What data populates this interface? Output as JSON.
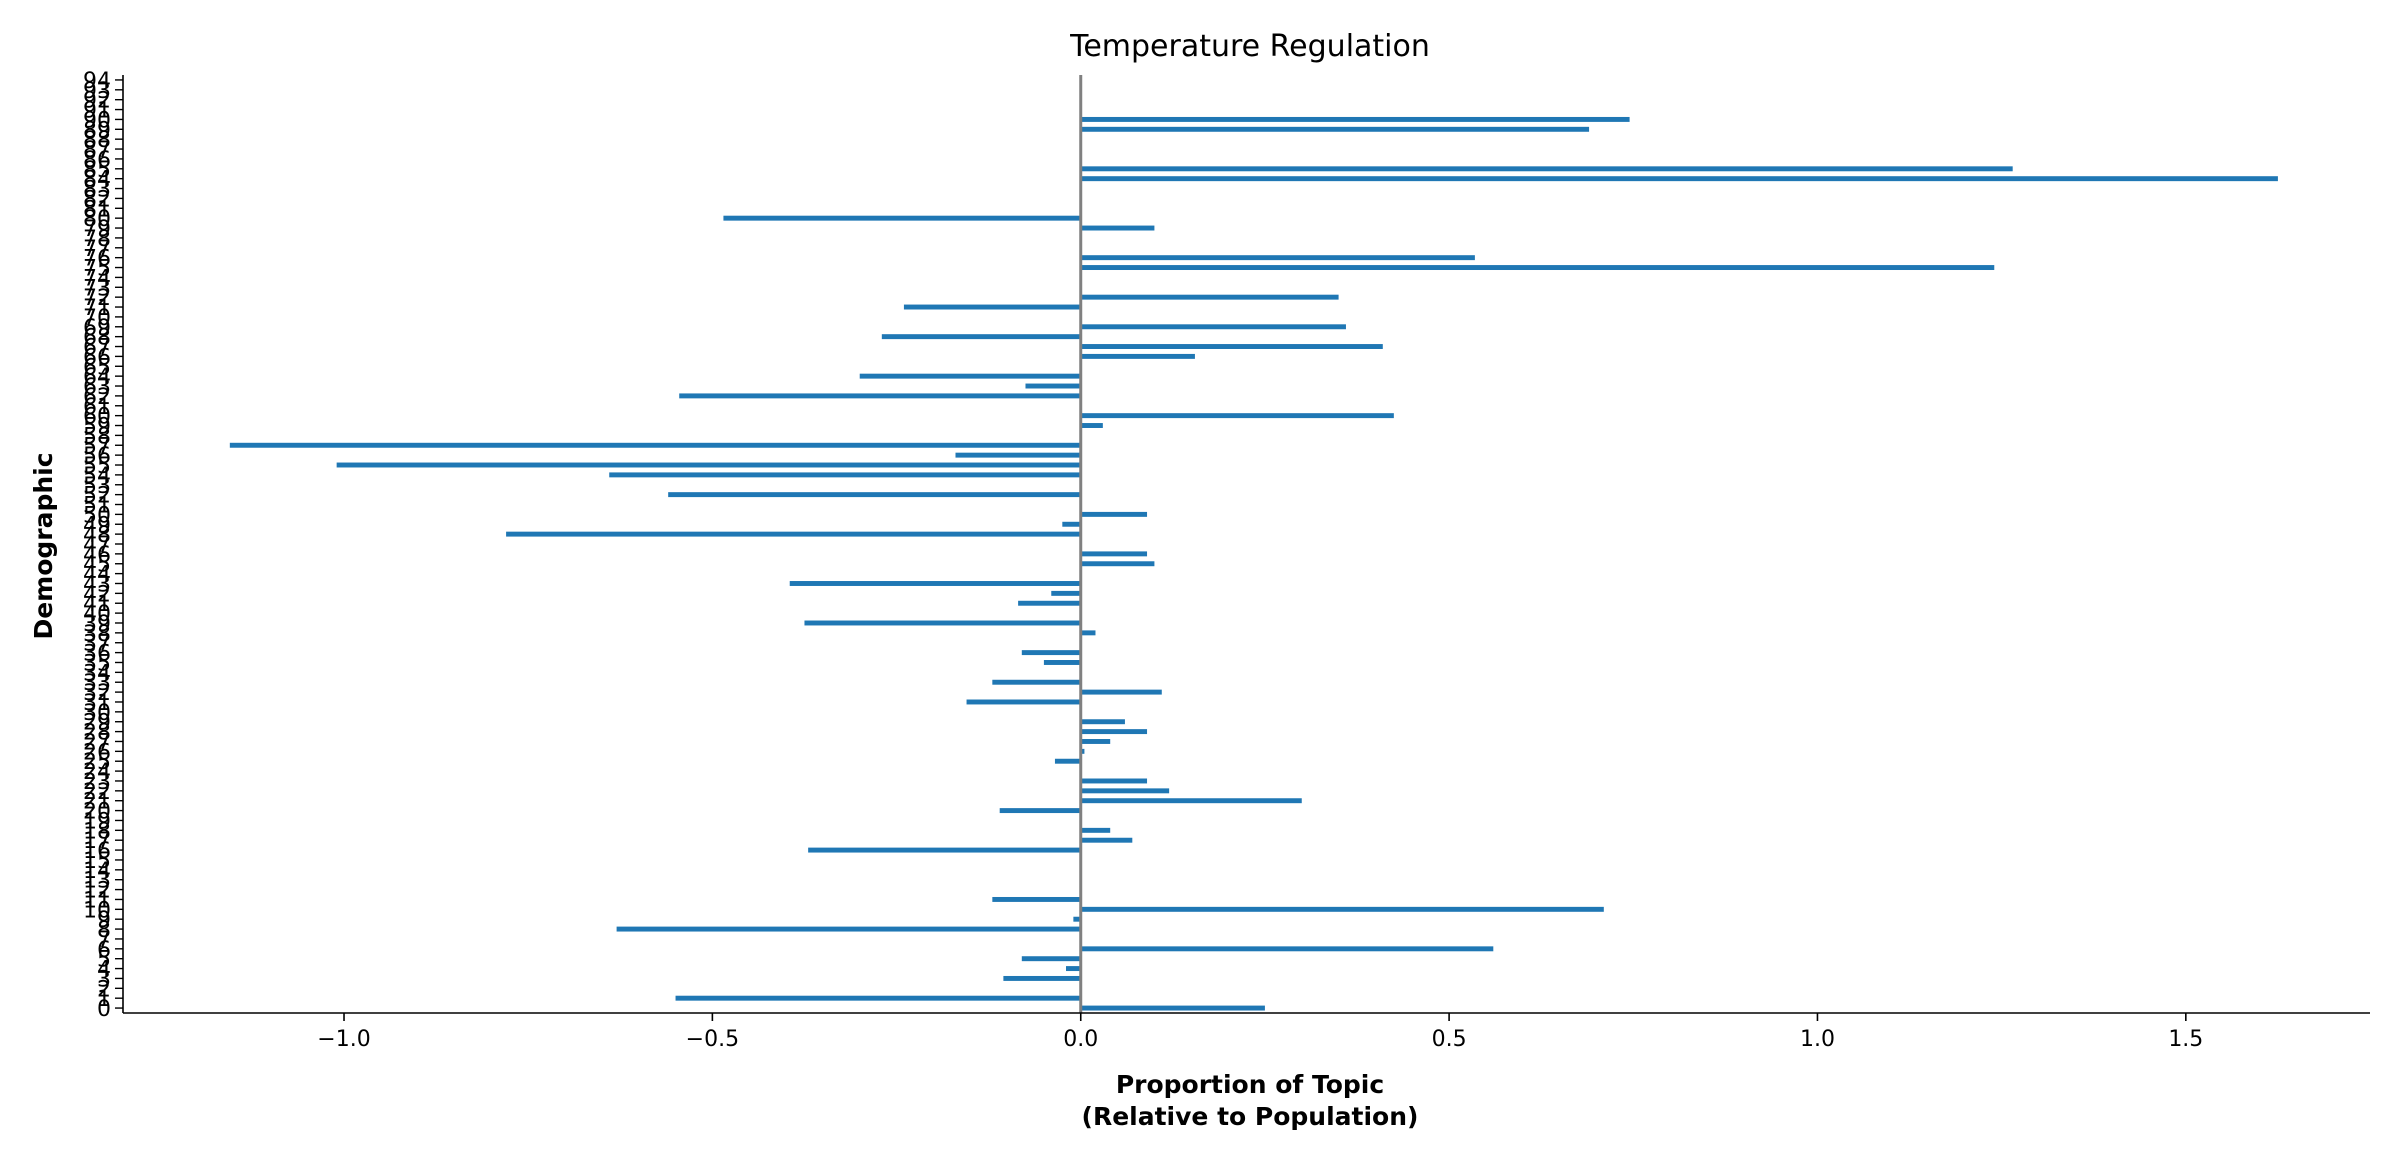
{
  "chart_data": {
    "type": "bar",
    "orientation": "horizontal",
    "title": "Temperature Regulation",
    "xlabel_lines": [
      "Proportion of Topic",
      "(Relative to Population)"
    ],
    "ylabel": "Demographic",
    "xlim": [
      -1.3,
      1.75
    ],
    "ylim": [
      -0.5,
      94.5
    ],
    "xticks": [
      -1.0,
      -0.5,
      0.0,
      0.5,
      1.0,
      1.5
    ],
    "xtick_labels": [
      "−1.0",
      "−0.5",
      "0.0",
      "0.5",
      "1.0",
      "1.5"
    ],
    "reference_line_x": 0,
    "colors": {
      "bar": "#1f77b4",
      "zero_line": "#808080",
      "axis": "#000000"
    },
    "grid": false,
    "categories": [
      0,
      1,
      2,
      3,
      4,
      5,
      6,
      7,
      8,
      9,
      10,
      11,
      12,
      13,
      14,
      15,
      16,
      17,
      18,
      19,
      20,
      21,
      22,
      23,
      24,
      25,
      26,
      27,
      28,
      29,
      30,
      31,
      32,
      33,
      34,
      35,
      36,
      37,
      38,
      39,
      40,
      41,
      42,
      43,
      44,
      45,
      46,
      47,
      48,
      49,
      50,
      51,
      52,
      53,
      54,
      55,
      56,
      57,
      58,
      59,
      60,
      61,
      62,
      63,
      64,
      65,
      66,
      67,
      68,
      69,
      70,
      71,
      72,
      73,
      74,
      75,
      76,
      77,
      78,
      79,
      80,
      81,
      82,
      83,
      84,
      85,
      86,
      87,
      88,
      89,
      90,
      91,
      92,
      93,
      94
    ],
    "values": [
      0.25,
      -0.55,
      0,
      -0.105,
      -0.02,
      -0.08,
      0.56,
      0,
      -0.63,
      -0.01,
      0.71,
      -0.12,
      0,
      0,
      0,
      0,
      -0.37,
      0.07,
      0.04,
      0,
      -0.11,
      0.3,
      0.12,
      0.09,
      0,
      -0.035,
      0.005,
      0.04,
      0.09,
      0.06,
      0,
      -0.155,
      0.11,
      -0.12,
      0,
      -0.05,
      -0.08,
      0,
      0.02,
      -0.375,
      0,
      -0.085,
      -0.04,
      -0.395,
      0,
      0.1,
      0.09,
      0,
      -0.78,
      -0.025,
      0.09,
      0,
      -0.56,
      0,
      -0.64,
      -1.01,
      -0.17,
      -1.155,
      0,
      0.03,
      0.425,
      0,
      -0.545,
      -0.075,
      -0.3,
      0,
      0.155,
      0.41,
      -0.27,
      0.36,
      0,
      -0.24,
      0.35,
      0,
      0,
      1.24,
      0.535,
      0,
      0,
      0.1,
      -0.485,
      0,
      0,
      0,
      1.625,
      1.265,
      0,
      0,
      0,
      0.69,
      0.745,
      0,
      0,
      0,
      0
    ]
  }
}
